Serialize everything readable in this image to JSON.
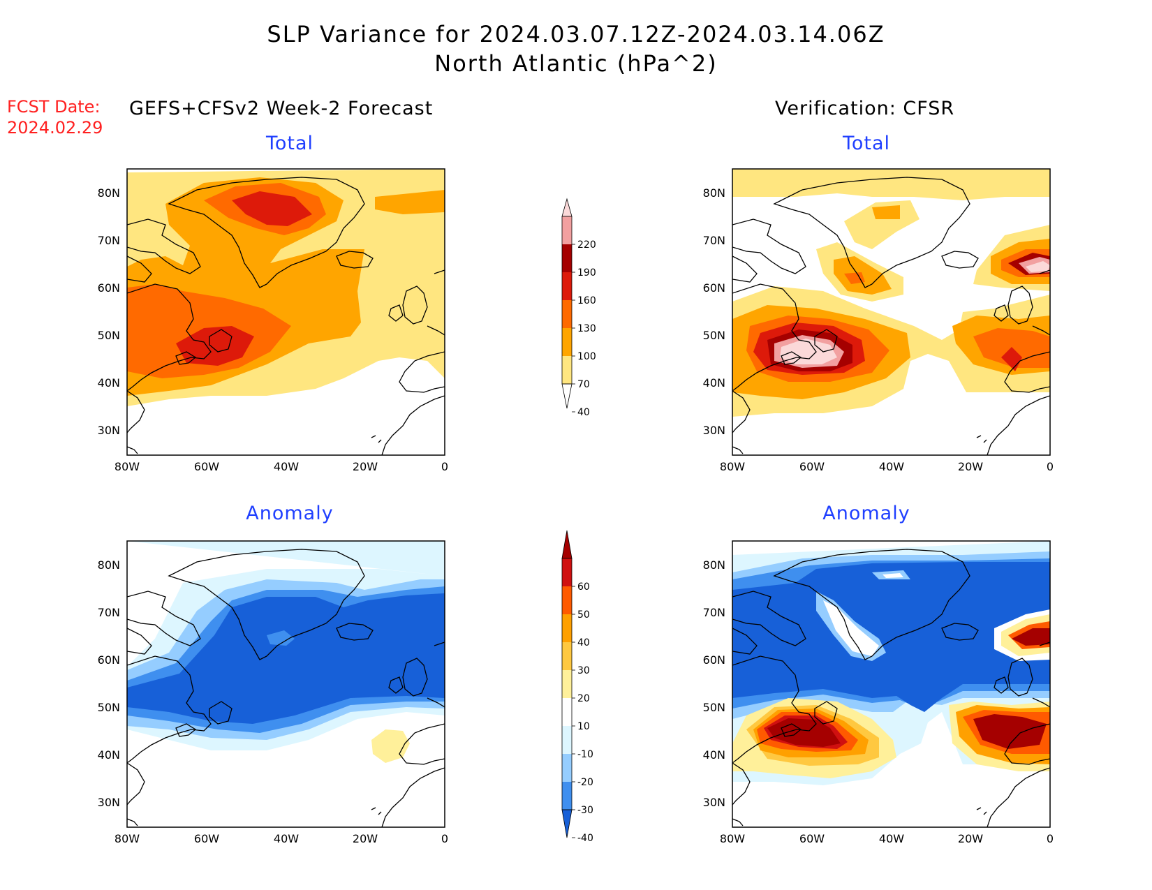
{
  "header": {
    "title_line1": "SLP Variance for 2024.03.07.12Z-2024.03.14.06Z",
    "title_line2": "North Atlantic (hPa^2)"
  },
  "forecast_date": {
    "label": "FCST Date:",
    "value": "2024.02.29"
  },
  "columns": {
    "left": "GEFS+CFSv2 Week-2 Forecast",
    "right": "Verification: CFSR"
  },
  "panels": {
    "forecast_total": {
      "title": "Total"
    },
    "verification_total": {
      "title": "Total"
    },
    "forecast_anomaly": {
      "title": "Anomaly"
    },
    "verification_anomaly": {
      "title": "Anomaly"
    }
  },
  "axes": {
    "lat_ticks": [
      "80N",
      "70N",
      "60N",
      "50N",
      "40N",
      "30N"
    ],
    "lon_ticks": [
      "80W",
      "60W",
      "40W",
      "20W",
      "0"
    ]
  },
  "colorbars": {
    "total": {
      "levels": [
        "220",
        "190",
        "160",
        "130",
        "100",
        "70",
        "40"
      ],
      "colors": [
        "#fbd9d9",
        "#f2a0a0",
        "#a50000",
        "#dd1a0a",
        "#ff6a00",
        "#ffa500",
        "#ffe680",
        "#ffffff"
      ]
    },
    "anomaly": {
      "levels": [
        "60",
        "50",
        "40",
        "30",
        "20",
        "10",
        "-10",
        "-20",
        "-30",
        "-40"
      ],
      "colors": [
        "#a50000",
        "#d01010",
        "#ff5a00",
        "#ffa000",
        "#ffc840",
        "#fff09a",
        "#ffffff",
        "#ddf6ff",
        "#95cdff",
        "#3f8fef",
        "#1760d8"
      ]
    }
  }
}
